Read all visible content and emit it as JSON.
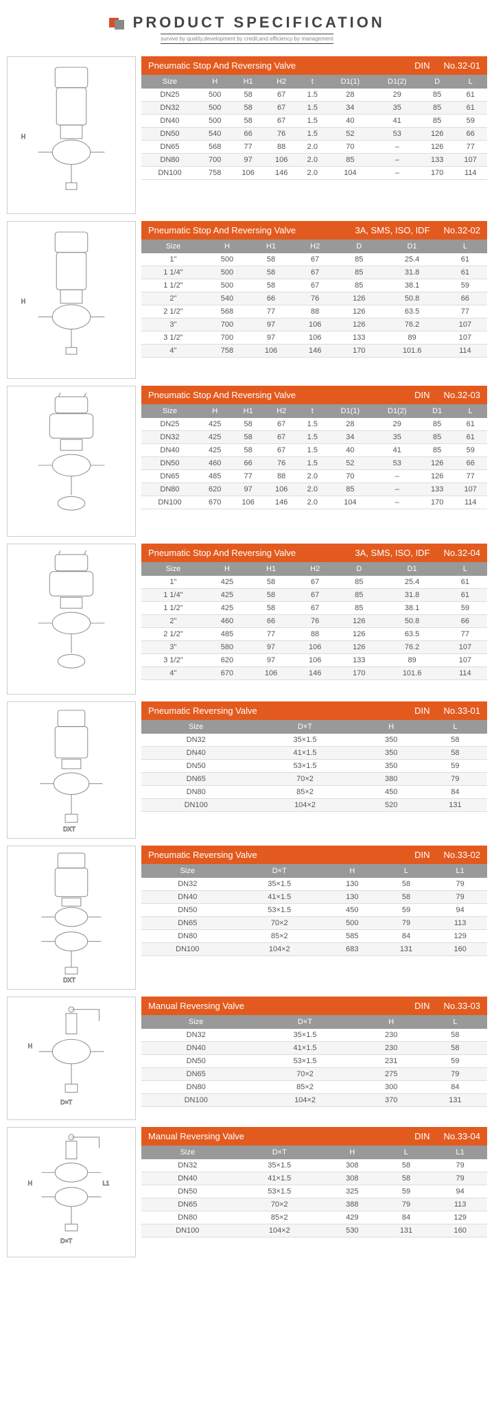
{
  "header": {
    "title": "PRODUCT SPECIFICATION",
    "subtitle": "survive by quality,development by credit,and efficiency by management"
  },
  "colors": {
    "accent": "#e35a1e",
    "header_row": "#999999",
    "text": "#555555",
    "border": "#dddddd"
  },
  "specs": [
    {
      "title": "Pneumatic Stop And Reversing Valve",
      "standard": "DIN",
      "code": "No.32-01",
      "drawing_height": 230,
      "columns": [
        "Size",
        "H",
        "H1",
        "H2",
        "t",
        "D1(1)",
        "D1(2)",
        "D",
        "L"
      ],
      "rows": [
        [
          "DN25",
          "500",
          "58",
          "67",
          "1.5",
          "28",
          "29",
          "85",
          "61"
        ],
        [
          "DN32",
          "500",
          "58",
          "67",
          "1.5",
          "34",
          "35",
          "85",
          "61"
        ],
        [
          "DN40",
          "500",
          "58",
          "67",
          "1.5",
          "40",
          "41",
          "85",
          "59"
        ],
        [
          "DN50",
          "540",
          "66",
          "76",
          "1.5",
          "52",
          "53",
          "126",
          "66"
        ],
        [
          "DN65",
          "568",
          "77",
          "88",
          "2.0",
          "70",
          "–",
          "126",
          "77"
        ],
        [
          "DN80",
          "700",
          "97",
          "106",
          "2.0",
          "85",
          "–",
          "133",
          "107"
        ],
        [
          "DN100",
          "758",
          "106",
          "146",
          "2.0",
          "104",
          "–",
          "170",
          "114"
        ]
      ]
    },
    {
      "title": "Pneumatic Stop And Reversing Valve",
      "standard": "3A, SMS, ISO, IDF",
      "code": "No.32-02",
      "drawing_height": 230,
      "columns": [
        "Size",
        "H",
        "H1",
        "H2",
        "D",
        "D1",
        "L"
      ],
      "rows": [
        [
          "1\"",
          "500",
          "58",
          "67",
          "85",
          "25.4",
          "61"
        ],
        [
          "1 1/4\"",
          "500",
          "58",
          "67",
          "85",
          "31.8",
          "61"
        ],
        [
          "1 1/2\"",
          "500",
          "58",
          "67",
          "85",
          "38.1",
          "59"
        ],
        [
          "2\"",
          "540",
          "66",
          "76",
          "126",
          "50.8",
          "66"
        ],
        [
          "2 1/2\"",
          "568",
          "77",
          "88",
          "126",
          "63.5",
          "77"
        ],
        [
          "3\"",
          "700",
          "97",
          "106",
          "126",
          "76.2",
          "107"
        ],
        [
          "3 1/2\"",
          "700",
          "97",
          "106",
          "133",
          "89",
          "107"
        ],
        [
          "4\"",
          "758",
          "106",
          "146",
          "170",
          "101.6",
          "114"
        ]
      ]
    },
    {
      "title": "Pneumatic Stop And Reversing Valve",
      "standard": "DIN",
      "code": "No.32-03",
      "drawing_height": 220,
      "columns": [
        "Size",
        "H",
        "H1",
        "H2",
        "t",
        "D1(1)",
        "D1(2)",
        "D1",
        "L"
      ],
      "rows": [
        [
          "DN25",
          "425",
          "58",
          "67",
          "1.5",
          "28",
          "29",
          "85",
          "61"
        ],
        [
          "DN32",
          "425",
          "58",
          "67",
          "1.5",
          "34",
          "35",
          "85",
          "61"
        ],
        [
          "DN40",
          "425",
          "58",
          "67",
          "1.5",
          "40",
          "41",
          "85",
          "59"
        ],
        [
          "DN50",
          "460",
          "66",
          "76",
          "1.5",
          "52",
          "53",
          "126",
          "66"
        ],
        [
          "DN65",
          "485",
          "77",
          "88",
          "2.0",
          "70",
          "–",
          "126",
          "77"
        ],
        [
          "DN80",
          "620",
          "97",
          "106",
          "2.0",
          "85",
          "–",
          "133",
          "107"
        ],
        [
          "DN100",
          "670",
          "106",
          "146",
          "2.0",
          "104",
          "–",
          "170",
          "114"
        ]
      ]
    },
    {
      "title": "Pneumatic Stop And Reversing Valve",
      "standard": "3A, SMS, ISO, IDF",
      "code": "No.32-04",
      "drawing_height": 220,
      "columns": [
        "Size",
        "H",
        "H1",
        "H2",
        "D",
        "D1",
        "L"
      ],
      "rows": [
        [
          "1\"",
          "425",
          "58",
          "67",
          "85",
          "25.4",
          "61"
        ],
        [
          "1 1/4\"",
          "425",
          "58",
          "67",
          "85",
          "31.8",
          "61"
        ],
        [
          "1 1/2\"",
          "425",
          "58",
          "67",
          "85",
          "38.1",
          "59"
        ],
        [
          "2\"",
          "460",
          "66",
          "76",
          "126",
          "50.8",
          "66"
        ],
        [
          "2 1/2\"",
          "485",
          "77",
          "88",
          "126",
          "63.5",
          "77"
        ],
        [
          "3\"",
          "580",
          "97",
          "106",
          "126",
          "76.2",
          "107"
        ],
        [
          "3 1/2\"",
          "620",
          "97",
          "106",
          "133",
          "89",
          "107"
        ],
        [
          "4\"",
          "670",
          "106",
          "146",
          "170",
          "101.6",
          "114"
        ]
      ]
    },
    {
      "title": "Pneumatic Reversing Valve",
      "standard": "DIN",
      "code": "No.33-01",
      "drawing_height": 200,
      "columns": [
        "Size",
        "D×T",
        "H",
        "L"
      ],
      "rows": [
        [
          "DN32",
          "35×1.5",
          "350",
          "58"
        ],
        [
          "DN40",
          "41×1.5",
          "350",
          "58"
        ],
        [
          "DN50",
          "53×1.5",
          "350",
          "59"
        ],
        [
          "DN65",
          "70×2",
          "380",
          "79"
        ],
        [
          "DN80",
          "85×2",
          "450",
          "84"
        ],
        [
          "DN100",
          "104×2",
          "520",
          "131"
        ]
      ]
    },
    {
      "title": "Pneumatic Reversing Valve",
      "standard": "DIN",
      "code": "No.33-02",
      "drawing_height": 210,
      "columns": [
        "Size",
        "D×T",
        "H",
        "L",
        "L1"
      ],
      "rows": [
        [
          "DN32",
          "35×1.5",
          "130",
          "58",
          "79"
        ],
        [
          "DN40",
          "41×1.5",
          "130",
          "58",
          "79"
        ],
        [
          "DN50",
          "53×1.5",
          "450",
          "59",
          "94"
        ],
        [
          "DN65",
          "70×2",
          "500",
          "79",
          "113"
        ],
        [
          "DN80",
          "85×2",
          "585",
          "84",
          "129"
        ],
        [
          "DN100",
          "104×2",
          "683",
          "131",
          "160"
        ]
      ]
    },
    {
      "title": "Manual Reversing Valve",
      "standard": "DIN",
      "code": "No.33-03",
      "drawing_height": 180,
      "columns": [
        "Size",
        "D×T",
        "H",
        "L"
      ],
      "rows": [
        [
          "DN32",
          "35×1.5",
          "230",
          "58"
        ],
        [
          "DN40",
          "41×1.5",
          "230",
          "58"
        ],
        [
          "DN50",
          "53×1.5",
          "231",
          "59"
        ],
        [
          "DN65",
          "70×2",
          "275",
          "79"
        ],
        [
          "DN80",
          "85×2",
          "300",
          "84"
        ],
        [
          "DN100",
          "104×2",
          "370",
          "131"
        ]
      ]
    },
    {
      "title": "Manual Reversing Valve",
      "standard": "DIN",
      "code": "No.33-04",
      "drawing_height": 190,
      "columns": [
        "Size",
        "D×T",
        "H",
        "L",
        "L1"
      ],
      "rows": [
        [
          "DN32",
          "35×1.5",
          "308",
          "58",
          "79"
        ],
        [
          "DN40",
          "41×1.5",
          "308",
          "58",
          "79"
        ],
        [
          "DN50",
          "53×1.5",
          "325",
          "59",
          "94"
        ],
        [
          "DN65",
          "70×2",
          "388",
          "79",
          "113"
        ],
        [
          "DN80",
          "85×2",
          "429",
          "84",
          "129"
        ],
        [
          "DN100",
          "104×2",
          "530",
          "131",
          "160"
        ]
      ]
    }
  ]
}
